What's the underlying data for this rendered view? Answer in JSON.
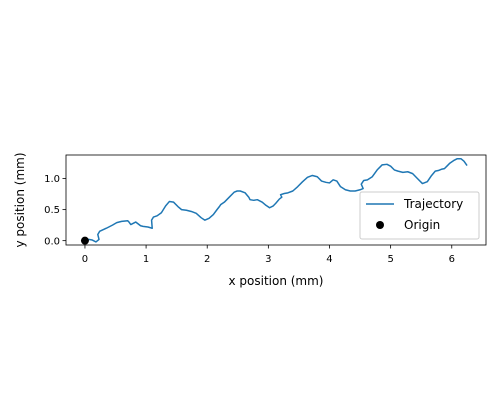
{
  "chart_data": {
    "type": "line",
    "title": "",
    "xlabel": "x position (mm)",
    "ylabel": "y position (mm)",
    "xlim": [
      -0.31,
      6.56
    ],
    "ylim": [
      -0.07,
      1.38
    ],
    "xticks": [
      0,
      1,
      2,
      3,
      4,
      5,
      6
    ],
    "yticks": [
      0.0,
      0.5,
      1.0
    ],
    "xtick_labels": [
      "0",
      "1",
      "2",
      "3",
      "4",
      "5",
      "6"
    ],
    "ytick_labels": [
      "0.0",
      "0.5",
      "1.0"
    ],
    "grid": false,
    "legend_position": "lower-right",
    "series": [
      {
        "name": "Trajectory",
        "kind": "line",
        "color": "#1f77b4",
        "x": [
          0,
          0.06,
          0.12,
          0.18,
          0.23,
          0.21,
          0.24,
          0.35,
          0.45,
          0.52,
          0.6,
          0.7,
          0.72,
          0.75,
          0.79,
          0.83,
          0.87,
          0.91,
          0.95,
          1.03,
          1.1,
          1.09,
          1.12,
          1.18,
          1.25,
          1.32,
          1.38,
          1.45,
          1.52,
          1.58,
          1.66,
          1.74,
          1.82,
          1.9,
          1.96,
          2.03,
          2.1,
          2.16,
          2.2,
          2.22,
          2.28,
          2.36,
          2.44,
          2.49,
          2.54,
          2.62,
          2.68,
          2.7,
          2.76,
          2.82,
          2.9,
          2.96,
          3.02,
          3.08,
          3.12,
          3.18,
          3.22,
          3.2,
          3.26,
          3.32,
          3.4,
          3.48,
          3.56,
          3.64,
          3.72,
          3.8,
          3.87,
          3.94,
          4.0,
          4.06,
          4.12,
          4.18,
          4.26,
          4.34,
          4.42,
          4.5,
          4.55,
          4.52,
          4.56,
          4.62,
          4.7,
          4.78,
          4.86,
          4.94,
          5.0,
          5.06,
          5.12,
          5.2,
          5.28,
          5.36,
          5.44,
          5.52,
          5.6,
          5.67,
          5.73,
          5.78,
          5.83,
          5.88,
          5.92,
          5.97,
          6.03,
          6.09,
          6.15,
          6.2,
          6.25
        ],
        "y": [
          0.0,
          0.02,
          0.01,
          -0.02,
          0.02,
          0.1,
          0.15,
          0.2,
          0.25,
          0.29,
          0.31,
          0.32,
          0.3,
          0.26,
          0.28,
          0.3,
          0.27,
          0.24,
          0.23,
          0.22,
          0.2,
          0.33,
          0.38,
          0.4,
          0.45,
          0.56,
          0.63,
          0.62,
          0.55,
          0.5,
          0.49,
          0.47,
          0.44,
          0.37,
          0.33,
          0.36,
          0.42,
          0.5,
          0.55,
          0.58,
          0.62,
          0.7,
          0.78,
          0.8,
          0.8,
          0.77,
          0.7,
          0.66,
          0.65,
          0.66,
          0.62,
          0.57,
          0.53,
          0.56,
          0.6,
          0.67,
          0.7,
          0.74,
          0.76,
          0.77,
          0.8,
          0.87,
          0.95,
          1.02,
          1.05,
          1.03,
          0.96,
          0.94,
          0.93,
          0.98,
          0.96,
          0.87,
          0.82,
          0.8,
          0.8,
          0.82,
          0.84,
          0.91,
          0.97,
          0.98,
          1.03,
          1.14,
          1.22,
          1.23,
          1.2,
          1.14,
          1.12,
          1.1,
          1.11,
          1.08,
          1.0,
          0.92,
          0.95,
          1.05,
          1.12,
          1.13,
          1.15,
          1.16,
          1.2,
          1.25,
          1.29,
          1.32,
          1.32,
          1.28,
          1.21
        ]
      },
      {
        "name": "Origin",
        "kind": "marker",
        "color": "#000000",
        "x": [
          0
        ],
        "y": [
          0
        ]
      }
    ]
  }
}
